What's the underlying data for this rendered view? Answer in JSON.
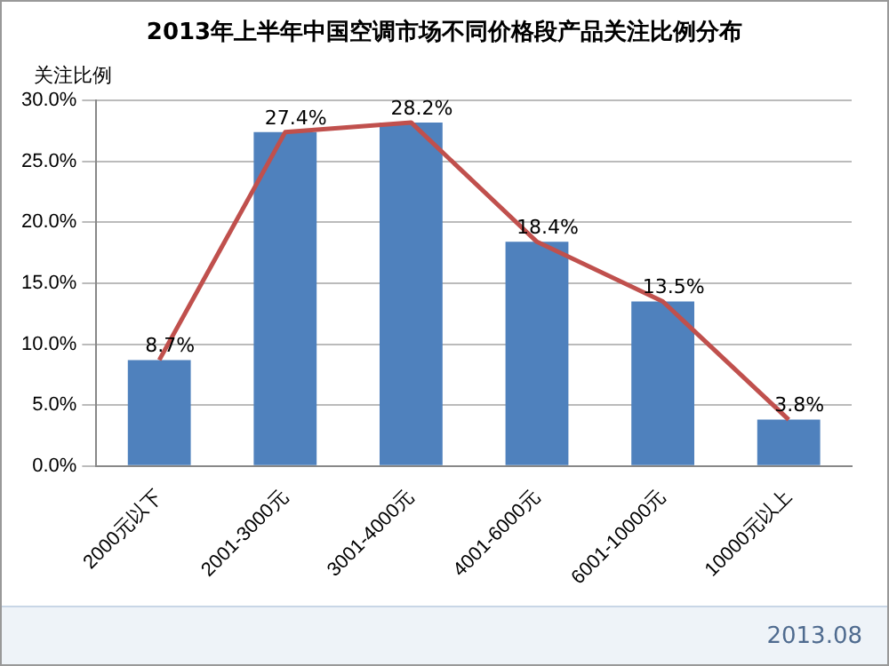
{
  "chart_data": {
    "type": "bar",
    "title": "2013年上半年中国空调市场不同价格段产品关注比例分布",
    "ylabel": "关注比例",
    "categories": [
      "2000元以下",
      "2001-3000元",
      "3001-4000元",
      "4001-6000元",
      "6001-10000元",
      "10000元以上"
    ],
    "series": [
      {
        "color": "#4f81bd",
        "values": [
          8.7,
          27.4,
          28.2,
          18.4,
          13.5,
          3.8
        ],
        "value_labels": [
          "8.7%",
          "27.4%",
          "28.2%",
          "18.4%",
          "13.5%",
          "3.8%"
        ]
      },
      {
        "type": "line",
        "color": "#c0504d",
        "values": [
          8.7,
          27.4,
          28.2,
          18.4,
          13.5,
          3.8
        ],
        "marker": "none"
      }
    ],
    "ylim": [
      0,
      30
    ],
    "yticks": [
      {
        "value": 0,
        "label": "0.0%"
      },
      {
        "value": 5,
        "label": "5.0%"
      },
      {
        "value": 10,
        "label": "10.0%"
      },
      {
        "value": 15,
        "label": "15.0%"
      },
      {
        "value": 20,
        "label": "20.0%"
      },
      {
        "value": 25,
        "label": "25.0%"
      },
      {
        "value": 30,
        "label": "30.0%"
      }
    ],
    "grid": "y",
    "legend": false,
    "annotations": [
      "2013.08"
    ]
  }
}
